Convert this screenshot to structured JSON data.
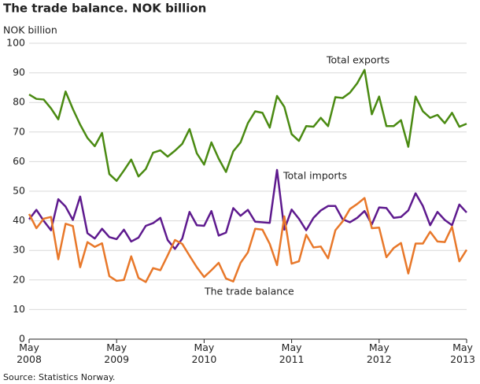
{
  "chart_data": {
    "type": "line",
    "title": "The trade balance. NOK billion",
    "y_label": "NOK billion",
    "source": "Source: Statistics Norway.",
    "categories": [
      "May 2008",
      null,
      null,
      null,
      null,
      null,
      null,
      null,
      null,
      null,
      null,
      null,
      "May 2009",
      null,
      null,
      null,
      null,
      null,
      null,
      null,
      null,
      null,
      null,
      null,
      "May 2010",
      null,
      null,
      null,
      null,
      null,
      null,
      null,
      null,
      null,
      null,
      null,
      "May 2011",
      null,
      null,
      null,
      null,
      null,
      null,
      null,
      null,
      null,
      null,
      null,
      "May 2012",
      null,
      null,
      null,
      null,
      null,
      null,
      null,
      null,
      null,
      null,
      null,
      "May 2013"
    ],
    "series": [
      {
        "name": "Total exports",
        "color": "#4a8a12",
        "values": [
          82.7,
          81.2,
          81,
          78,
          74.3,
          83.7,
          77.8,
          72.5,
          68,
          65.2,
          69.7,
          55.8,
          53.5,
          57,
          60.7,
          55,
          57.5,
          63,
          63.8,
          61.7,
          63.7,
          66,
          71,
          62.8,
          59,
          66.5,
          61,
          56.5,
          63.5,
          66.5,
          73,
          77,
          76.5,
          71.5,
          82.2,
          78.5,
          69.3,
          67,
          72,
          71.8,
          74.8,
          72,
          81.8,
          81.5,
          83.3,
          86.5,
          91,
          76,
          82,
          72,
          72,
          74,
          65,
          82,
          77,
          74.8,
          75.8,
          73,
          76.5,
          71.8,
          72.8
        ]
      },
      {
        "name": "Total imports",
        "color": "#5e1a8e",
        "values": [
          40.5,
          43.7,
          40,
          36.8,
          47.3,
          44.8,
          40.3,
          48.2,
          35.8,
          34,
          37.3,
          34.5,
          33.8,
          37,
          33,
          34.3,
          38.3,
          39.2,
          41,
          33.5,
          30.5,
          34,
          43,
          38.5,
          38.3,
          43.3,
          35,
          36,
          44.3,
          41.7,
          43.7,
          39.7,
          39.5,
          39.3,
          57.2,
          37,
          43.8,
          40.7,
          36.8,
          41,
          43.5,
          45,
          45,
          40.5,
          39.5,
          41,
          43.3,
          38.8,
          44.5,
          44.3,
          41,
          41.3,
          43.5,
          49.3,
          45,
          38.5,
          43,
          40.3,
          38.5,
          45.5,
          42.8
        ]
      },
      {
        "name": "The trade balance",
        "color": "#e8782a",
        "values": [
          42.3,
          37.5,
          40.7,
          41.3,
          27,
          39,
          38.2,
          24.3,
          32.8,
          31.2,
          32.4,
          21.3,
          19.7,
          20,
          28,
          20.7,
          19.3,
          24,
          23.3,
          28.3,
          33.5,
          32.2,
          28.2,
          24.3,
          21,
          23.3,
          25.8,
          20.5,
          19.5,
          25.8,
          29.3,
          37.3,
          37,
          32.2,
          25,
          41.5,
          25.5,
          26.3,
          35.3,
          31,
          31.3,
          27.3,
          36.8,
          39.8,
          44,
          45.7,
          47.7,
          37.5,
          37.7,
          27.7,
          30.8,
          32.5,
          22.2,
          32.3,
          32.3,
          36.3,
          33,
          32.8,
          38,
          26.3,
          30.2
        ]
      }
    ],
    "ylim": [
      0,
      100
    ],
    "yticks": [
      0,
      10,
      20,
      30,
      40,
      50,
      60,
      70,
      80,
      90,
      100
    ],
    "grid": true
  }
}
